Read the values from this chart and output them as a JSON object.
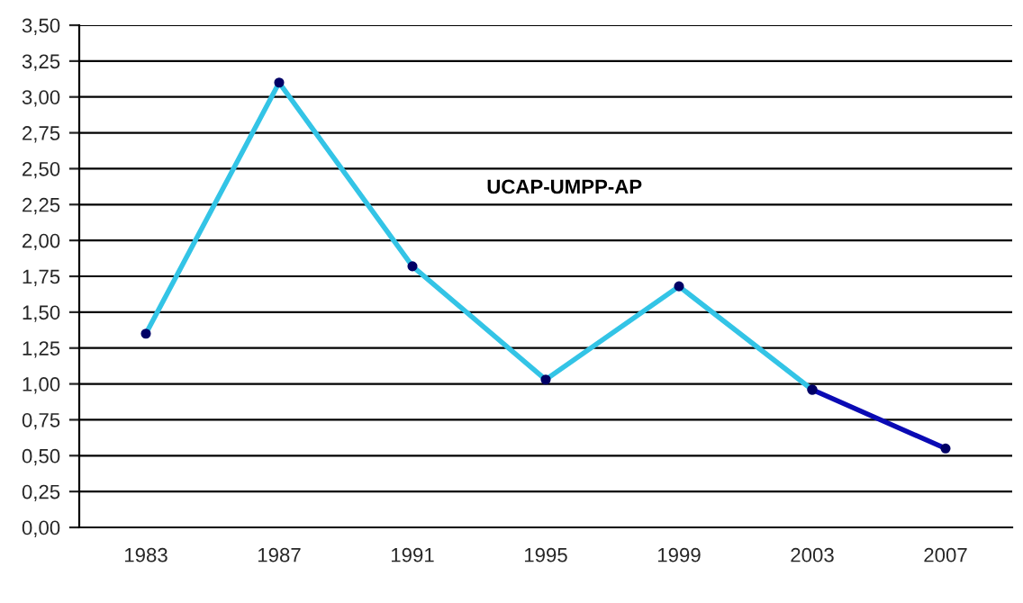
{
  "chart_data": {
    "type": "line",
    "categories": [
      "1983",
      "1987",
      "1991",
      "1995",
      "1999",
      "2003",
      "2007"
    ],
    "series": [
      {
        "name": "UCAP-UMPP-AP",
        "color": "#33c4e6",
        "values": [
          1.35,
          3.1,
          1.82,
          1.03,
          1.68,
          0.96,
          null
        ]
      },
      {
        "color": "#0a0ab4",
        "values": [
          null,
          null,
          null,
          null,
          null,
          0.96,
          0.55
        ]
      }
    ],
    "ylim": [
      0,
      3.5
    ],
    "yticks": [
      {
        "value": 0,
        "label": "0,00"
      },
      {
        "value": 0.25,
        "label": "0,25"
      },
      {
        "value": 0.5,
        "label": "0,50"
      },
      {
        "value": 0.75,
        "label": "0,75"
      },
      {
        "value": 1,
        "label": "1,00"
      },
      {
        "value": 1.25,
        "label": "1,25"
      },
      {
        "value": 1.5,
        "label": "1,50"
      },
      {
        "value": 1.75,
        "label": "1,75"
      },
      {
        "value": 2,
        "label": "2,00"
      },
      {
        "value": 2.25,
        "label": "2,25"
      },
      {
        "value": 2.5,
        "label": "2,50"
      },
      {
        "value": 2.75,
        "label": "2,75"
      },
      {
        "value": 3,
        "label": "3,00"
      },
      {
        "value": 3.25,
        "label": "3,25"
      },
      {
        "value": 3.5,
        "label": "3,50"
      }
    ],
    "grid": "y",
    "marker": "circle",
    "line_style": "solid",
    "legend": false
  }
}
